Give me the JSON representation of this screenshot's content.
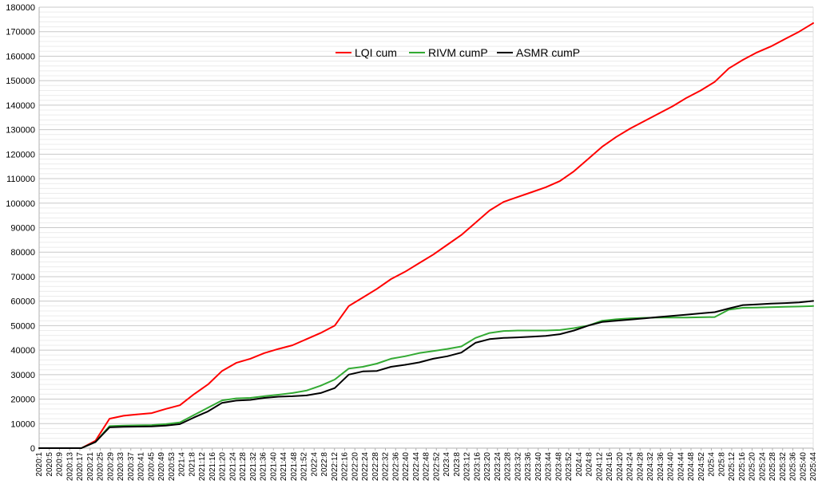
{
  "chart_data": {
    "type": "line",
    "title": "",
    "xlabel": "",
    "ylabel": "",
    "ylim": [
      0,
      180000
    ],
    "y_ticks": [
      0,
      10000,
      20000,
      30000,
      40000,
      50000,
      60000,
      70000,
      80000,
      90000,
      100000,
      110000,
      120000,
      130000,
      140000,
      150000,
      160000,
      170000,
      180000
    ],
    "x_tick_labels": [
      "2020:1",
      "2020:5",
      "2020:9",
      "2020:13",
      "2020:17",
      "2020:21",
      "2020:25",
      "2020:29",
      "2020:33",
      "2020:37",
      "2020:41",
      "2020:45",
      "2020:49",
      "2020:53",
      "2021:4",
      "2021:8",
      "2021:12",
      "2021:16",
      "2021:20",
      "2021:24",
      "2021:28",
      "2021:32",
      "2021:36",
      "2021:40",
      "2021:44",
      "2021:48",
      "2021:52",
      "2022:4",
      "2022:8",
      "2022:12",
      "2022:16",
      "2022:20",
      "2022:24",
      "2022:28",
      "2022:32",
      "2022:36",
      "2022:40",
      "2022:44",
      "2022:48",
      "2022:52",
      "2023:4",
      "2023:8",
      "2023:12",
      "2023:16",
      "2023:20",
      "2023:24",
      "2023:28",
      "2023:32",
      "2023:36",
      "2023:40",
      "2023:44",
      "2023:48",
      "2023:52",
      "2024:4",
      "2024:8",
      "2024:12",
      "2024:16",
      "2024:20",
      "2024:24",
      "2024:28",
      "2024:32",
      "2024:36",
      "2024:40",
      "2024:44",
      "2024:48",
      "2024:52",
      "2025:4",
      "2025:8",
      "2025:12",
      "2025:16",
      "2025:20",
      "2025:24",
      "2025:28",
      "2025:32",
      "2025:36",
      "2025:40",
      "2025:44"
    ],
    "grid": true,
    "legend_position": "top-center",
    "series": [
      {
        "name": "LQI cum",
        "color": "#ff0000",
        "values": [
          0,
          0,
          0,
          0,
          3000,
          12000,
          13200,
          13800,
          14300,
          16000,
          17500,
          22000,
          26000,
          31500,
          34800,
          36500,
          38800,
          40500,
          42000,
          44500,
          47000,
          50000,
          58000,
          61500,
          65000,
          69000,
          72000,
          75500,
          79000,
          83000,
          87000,
          92000,
          97000,
          100500,
          102500,
          104500,
          106500,
          109000,
          113000,
          118000,
          123000,
          127000,
          130500,
          133500,
          136500,
          139500,
          143000,
          146000,
          149500,
          155000,
          158500,
          161500,
          164000,
          167000,
          170000,
          173500
        ]
      },
      {
        "name": "RIVM cumP",
        "color": "#33aa33",
        "values": [
          0,
          0,
          0,
          0,
          2500,
          9000,
          9200,
          9300,
          9400,
          9800,
          10500,
          13500,
          16500,
          19500,
          20300,
          20500,
          21200,
          21800,
          22500,
          23500,
          25500,
          28000,
          32500,
          33200,
          34500,
          36500,
          37500,
          38800,
          39600,
          40500,
          41500,
          45000,
          47000,
          47800,
          48000,
          48000,
          48000,
          48200,
          49000,
          50000,
          52000,
          52600,
          53000,
          53200,
          53300,
          53300,
          53300,
          53400,
          53500,
          56500,
          57300,
          57400,
          57500,
          57700,
          57800,
          58000
        ]
      },
      {
        "name": "ASMR cumP",
        "color": "#000000",
        "values": [
          0,
          0,
          0,
          0,
          2500,
          8500,
          8700,
          8800,
          8900,
          9200,
          9800,
          12500,
          15000,
          18500,
          19400,
          19700,
          20500,
          21000,
          21200,
          21500,
          22500,
          24500,
          30000,
          31300,
          31500,
          33200,
          34000,
          35000,
          36500,
          37500,
          39000,
          43000,
          44500,
          45000,
          45200,
          45500,
          45800,
          46500,
          48000,
          50000,
          51500,
          52000,
          52500,
          53000,
          53500,
          54000,
          54500,
          55000,
          55500,
          57000,
          58400,
          58700,
          59000,
          59200,
          59500,
          60100
        ]
      }
    ]
  }
}
